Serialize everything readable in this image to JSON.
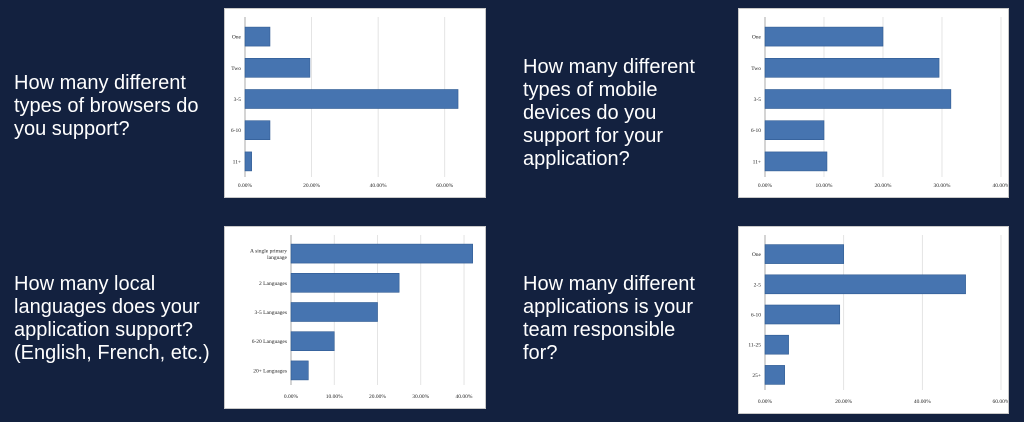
{
  "colors": {
    "background": "#13213f",
    "bar": "#4674b0",
    "bar_edge": "#2f5a92",
    "grid": "#dddddd"
  },
  "questions": [
    "How many different\ntypes of browsers do\nyou support?",
    "How many different\ntypes of mobile\ndevices do you\nsupport for your\napplication?",
    "How many local\nlanguages does your\napplication support?\n(English, French, etc.)",
    "How many different\napplications is your\nteam responsible\nfor?"
  ],
  "chart_data": [
    {
      "type": "bar",
      "orientation": "horizontal",
      "categories": [
        "One",
        "Two",
        "3-5",
        "6-10",
        "11+"
      ],
      "values": [
        7.5,
        19.5,
        64,
        7.5,
        2
      ],
      "x_ticks": [
        "0.00%",
        "20.00%",
        "40.00%",
        "60.00%"
      ],
      "xlim": [
        0,
        70
      ],
      "grid": true
    },
    {
      "type": "bar",
      "orientation": "horizontal",
      "categories": [
        "One",
        "Two",
        "3-5",
        "6-10",
        "11+"
      ],
      "values": [
        20,
        29.5,
        31.5,
        10,
        10.5
      ],
      "x_ticks": [
        "0.00%",
        "10.00%",
        "20.00%",
        "30.00%",
        "40.00%"
      ],
      "xlim": [
        0,
        40
      ],
      "grid": true
    },
    {
      "type": "bar",
      "orientation": "horizontal",
      "categories": [
        "A single primary language",
        "2 Languages",
        "3-5 Languages",
        "6-20 Languages",
        "20+ Languages"
      ],
      "values": [
        42,
        25,
        20,
        10,
        4
      ],
      "x_ticks": [
        "0.00%",
        "10.00%",
        "20.00%",
        "30.00%",
        "40.00%"
      ],
      "xlim": [
        0,
        43
      ],
      "grid": true
    },
    {
      "type": "bar",
      "orientation": "horizontal",
      "categories": [
        "One",
        "2-5",
        "6-10",
        "11-25",
        "25+"
      ],
      "values": [
        20,
        51,
        19,
        6,
        5
      ],
      "x_ticks": [
        "0.00%",
        "20.00%",
        "40.00%",
        "60.00%"
      ],
      "xlim": [
        0,
        60
      ],
      "grid": true
    }
  ]
}
